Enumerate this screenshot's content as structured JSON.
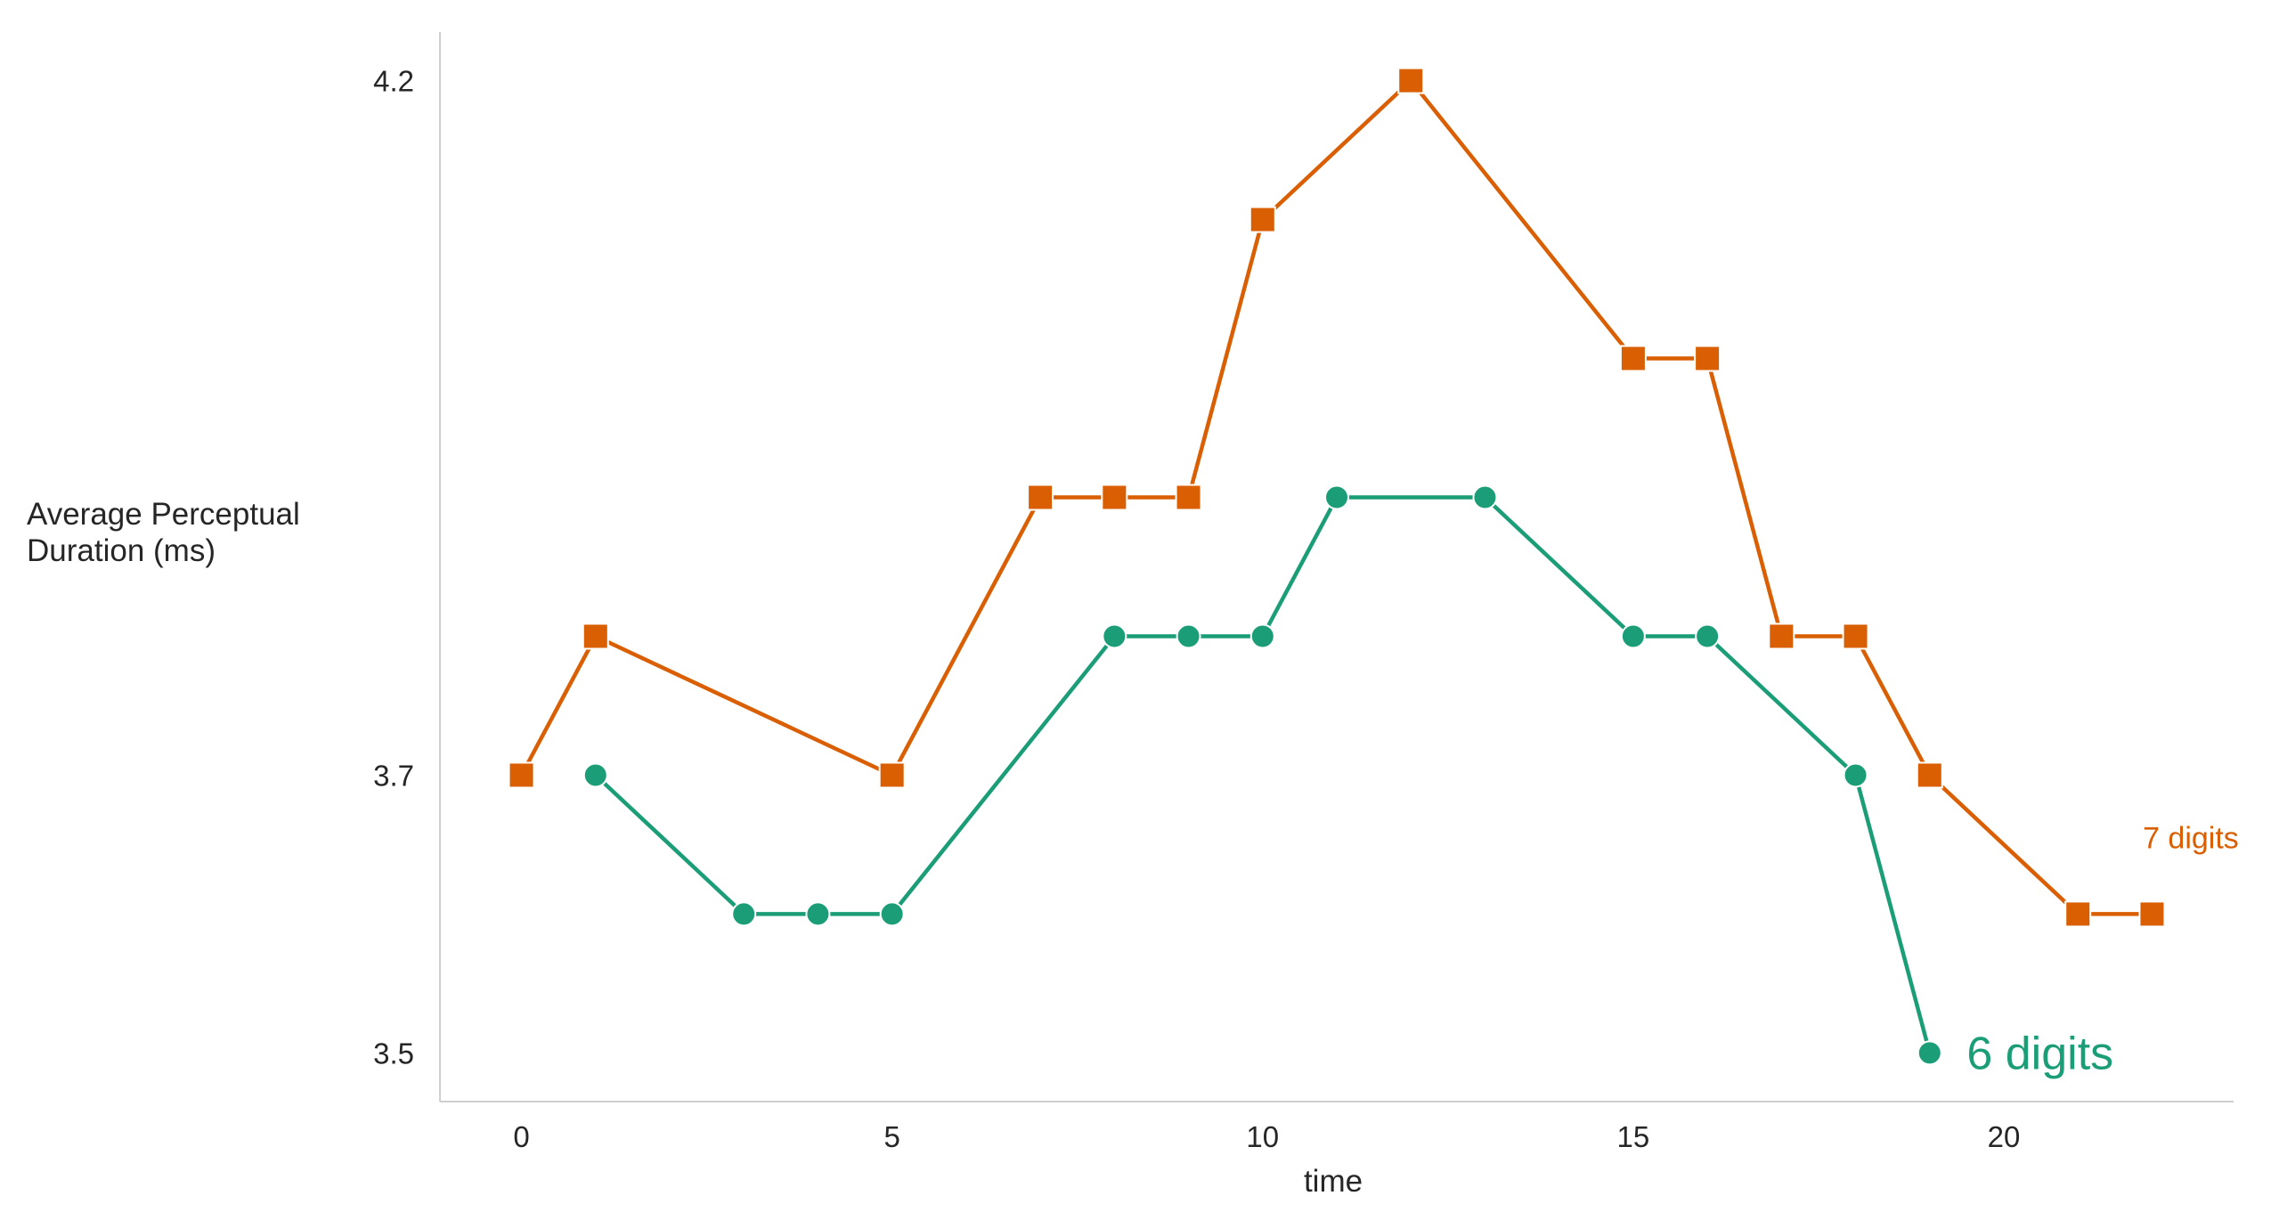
{
  "chart_data": {
    "type": "line",
    "title": "",
    "xlabel": "time",
    "ylabel_lines": [
      "Average Perceptual",
      "Duration (ms)"
    ],
    "xlim": [
      -1.1,
      23.1
    ],
    "ylim": [
      3.465,
      4.235
    ],
    "x_ticks": [
      0,
      5,
      10,
      15,
      20
    ],
    "y_ticks": [
      3.5,
      3.7,
      4.2
    ],
    "grid": false,
    "legend": "none",
    "series": [
      {
        "name": "7 digits",
        "color": "#d95f02",
        "marker": "square",
        "x": [
          0,
          1,
          5,
          7,
          8,
          9,
          10,
          12,
          15,
          16,
          17,
          18,
          19,
          21,
          22
        ],
        "y": [
          3.7,
          3.8,
          3.7,
          3.9,
          3.9,
          3.9,
          4.1,
          4.2,
          4.0,
          4.0,
          3.8,
          3.8,
          3.7,
          3.6,
          3.6
        ]
      },
      {
        "name": "6 digits",
        "color": "#1b9e77",
        "marker": "circle",
        "x": [
          1,
          3,
          4,
          5,
          8,
          9,
          10,
          11,
          13,
          15,
          16,
          18,
          19
        ],
        "y": [
          3.7,
          3.6,
          3.6,
          3.6,
          3.8,
          3.8,
          3.8,
          3.9,
          3.9,
          3.8,
          3.8,
          3.7,
          3.5
        ]
      }
    ],
    "annotations": [
      {
        "text": "7 digits",
        "color": "#d95f02",
        "x": 22.5,
        "y": 3.655,
        "size": "small"
      },
      {
        "text": "6 digits",
        "color": "#1b9e77",
        "x": 19.5,
        "y": 3.5,
        "size": "large"
      }
    ]
  }
}
